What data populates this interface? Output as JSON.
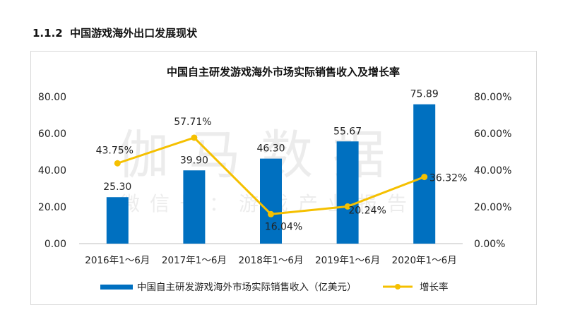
{
  "section": {
    "number": "1.1.2",
    "title": "中国游戏海外出口发展现状"
  },
  "watermark": {
    "main": "伽马数据",
    "sub": "微信号：游戏产业报告"
  },
  "chart_data": {
    "type": "bar+line",
    "title": "中国自主研发游戏海外市场实际销售收入及增长率",
    "categories": [
      "2016年1～6月",
      "2017年1～6月",
      "2018年1～6月",
      "2019年1～6月",
      "2020年1～6月"
    ],
    "series": [
      {
        "name": "中国自主研发游戏海外市场实际销售收入（亿美元）",
        "type": "bar",
        "axis": "left",
        "color": "#0070c0",
        "values": [
          25.3,
          39.9,
          46.3,
          55.67,
          75.89
        ],
        "labels": [
          "25.30",
          "39.90",
          "46.30",
          "55.67",
          "75.89"
        ]
      },
      {
        "name": "增长率",
        "type": "line",
        "axis": "right",
        "color": "#f5c000",
        "values": [
          43.75,
          57.71,
          16.04,
          20.24,
          36.32
        ],
        "labels": [
          "43.75%",
          "57.71%",
          "16.04%",
          "20.24%",
          "36.32%"
        ]
      }
    ],
    "y_left": {
      "min": 0,
      "max": 80,
      "ticks": [
        "0.00",
        "20.00",
        "40.00",
        "60.00",
        "80.00"
      ]
    },
    "y_right": {
      "min": 0,
      "max": 80,
      "ticks": [
        "0.00%",
        "20.00%",
        "40.00%",
        "60.00%",
        "80.00%"
      ]
    },
    "grid": false,
    "legend_position": "bottom"
  }
}
